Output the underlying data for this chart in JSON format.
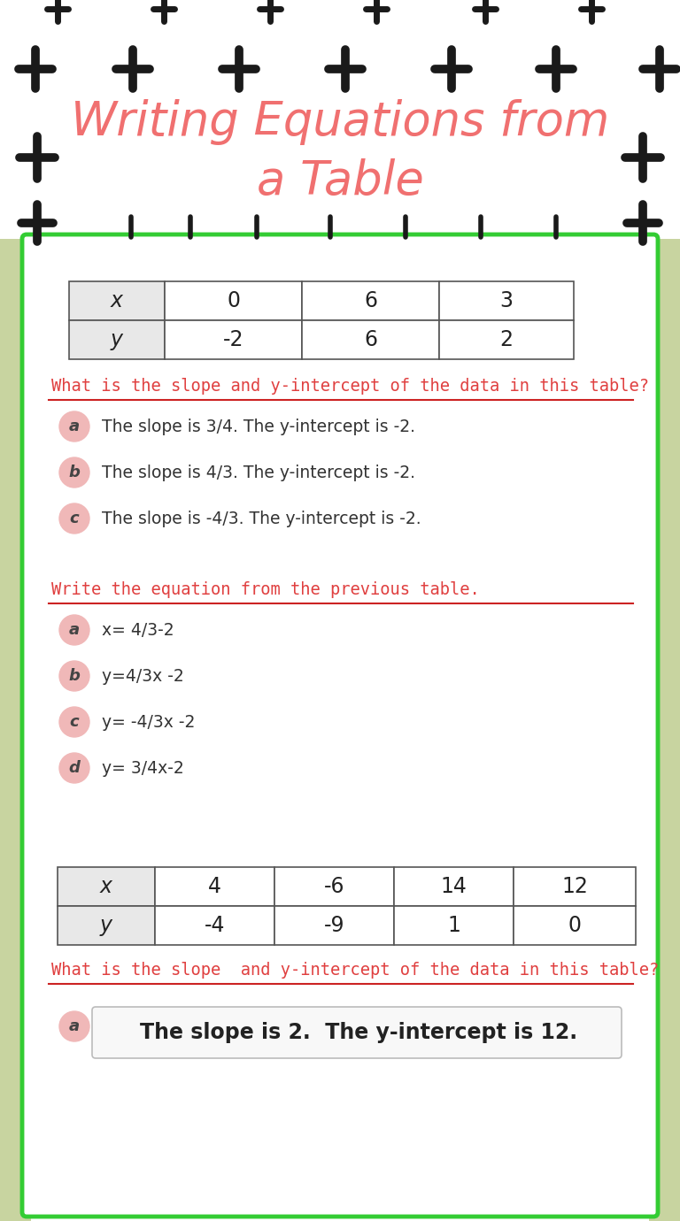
{
  "title_line1": "Writing Equations from",
  "title_line2": "a Table",
  "title_color": "#f07070",
  "bg_color": "#ffffff",
  "green_border_color": "#33cc33",
  "green_side_color": "#c8d4a0",
  "red_question_color": "#e04040",
  "red_line_color": "#cc2222",
  "circle_color": "#f0b8b8",
  "table1_headers": [
    "x",
    "0",
    "6",
    "3"
  ],
  "table1_row2": [
    "y",
    "-2",
    "6",
    "2"
  ],
  "q1_text": "What is the slope and y-intercept of the data in this table?",
  "q1_options": [
    [
      "a",
      "The slope is 3/4. The y-intercept is -2."
    ],
    [
      "b",
      "The slope is 4/3. The y-intercept is -2."
    ],
    [
      "c",
      "The slope is -4/3. The y-intercept is -2."
    ]
  ],
  "q2_text": "Write the equation from the previous table.",
  "q2_options": [
    [
      "a",
      "x= 4/3-2"
    ],
    [
      "b",
      "y=4/3x -2"
    ],
    [
      "c",
      "y= -4/3x -2"
    ],
    [
      "d",
      "y= 3/4x-2"
    ]
  ],
  "table2_headers": [
    "x",
    "4",
    "-6",
    "14",
    "12"
  ],
  "table2_row2": [
    "y",
    "-4",
    "-9",
    "1",
    "0"
  ],
  "q3_text": "What is the slope  and y-intercept of the data in this table?",
  "q3_answer": "The slope is 2.  The y-intercept is 12."
}
